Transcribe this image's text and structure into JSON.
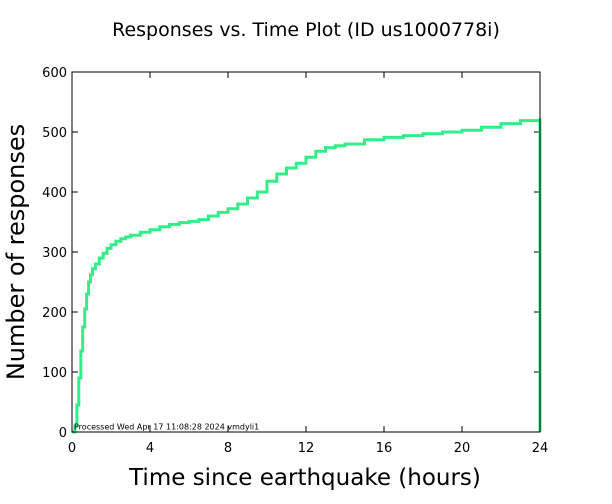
{
  "chart_data": {
    "type": "line",
    "title": "Responses vs. Time Plot (ID us1000778i)",
    "xlabel": "Time since earthquake (hours)",
    "ylabel": "Number of responses",
    "xlim": [
      0,
      24
    ],
    "ylim": [
      0,
      600
    ],
    "xticks": [
      0,
      4,
      8,
      12,
      16,
      20,
      24
    ],
    "yticks": [
      0,
      100,
      200,
      300,
      400,
      500,
      600
    ],
    "grid": false,
    "line_color": "#33ee88",
    "annotation": "Processed Wed Apr 17 11:08:28 2024 vmdyli1",
    "series": [
      {
        "x": [
          0,
          0.15,
          0.25,
          0.35,
          0.45,
          0.55,
          0.65,
          0.75,
          0.85,
          0.95,
          1.05,
          1.2,
          1.4,
          1.6,
          1.8,
          2.0,
          2.25,
          2.5,
          2.75,
          3.0,
          3.5,
          4.0,
          4.5,
          5.0,
          5.5,
          6.0,
          6.5,
          7.0,
          7.5,
          8.0,
          8.5,
          9.0,
          9.5,
          10.0,
          10.5,
          11.0,
          11.5,
          12.0,
          12.5,
          13.0,
          13.5,
          14.0,
          15.0,
          16.0,
          17.0,
          18.0,
          19.0,
          20.0,
          21.0,
          22.0,
          23.0,
          24.0,
          24.0
        ],
        "y": [
          0,
          10,
          45,
          90,
          135,
          175,
          205,
          230,
          250,
          262,
          272,
          280,
          290,
          298,
          306,
          312,
          318,
          322,
          325,
          328,
          333,
          337,
          342,
          346,
          349,
          351,
          354,
          360,
          366,
          372,
          380,
          390,
          400,
          418,
          430,
          440,
          448,
          458,
          468,
          474,
          477,
          480,
          487,
          491,
          494,
          497,
          500,
          503,
          508,
          514,
          519,
          523,
          0
        ]
      }
    ]
  }
}
